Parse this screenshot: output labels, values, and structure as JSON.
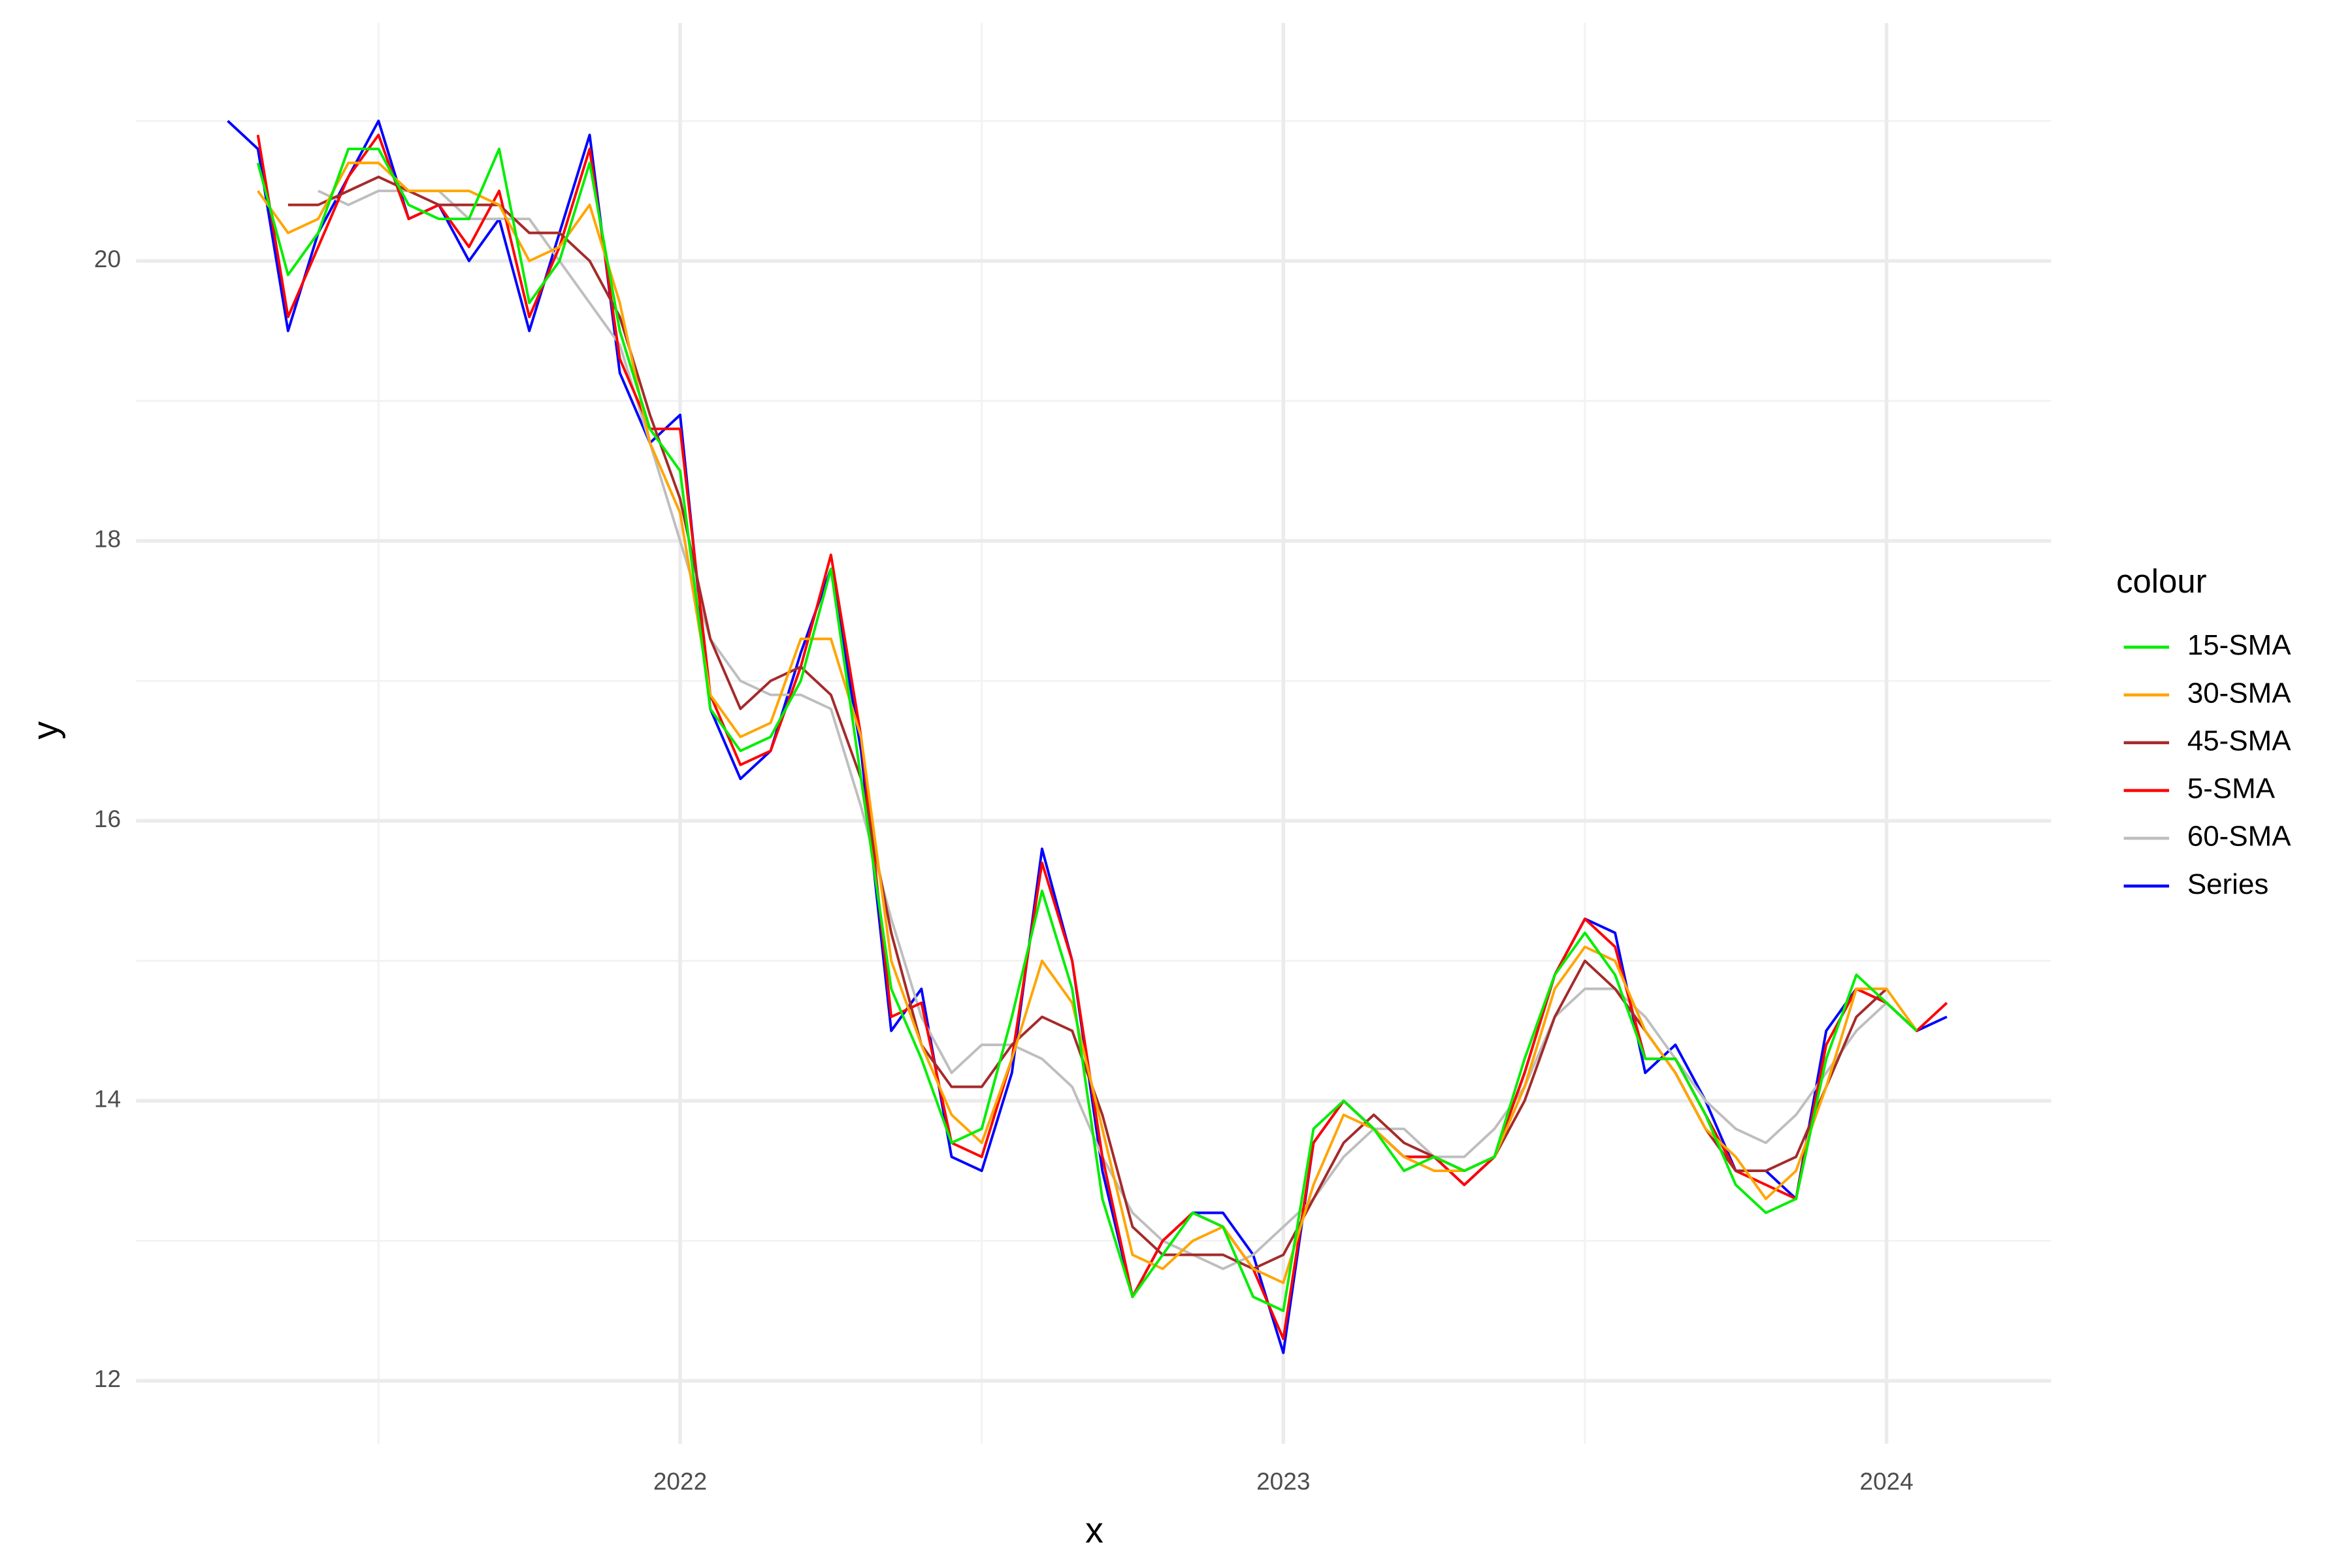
{
  "chart_data": {
    "type": "line",
    "x_label": "x",
    "y_label": "y",
    "legend_title": "colour",
    "legend_position": "right",
    "grid": true,
    "xlim": [
      2021.098,
      2024.273
    ],
    "ylim": [
      11.55,
      21.7
    ],
    "xticks": [
      2022,
      2023,
      2024
    ],
    "yticks": [
      12,
      14,
      16,
      18,
      20
    ],
    "x_minor_ticks": [
      2021.5,
      2022.5,
      2023.5
    ],
    "y_minor_ticks": [
      13,
      15,
      17,
      19,
      21
    ],
    "x": [
      2021.25,
      2021.3,
      2021.35,
      2021.4,
      2021.45,
      2021.5,
      2021.55,
      2021.6,
      2021.65,
      2021.7,
      2021.75,
      2021.8,
      2021.85,
      2021.9,
      2021.95,
      2022.0,
      2022.05,
      2022.1,
      2022.15,
      2022.2,
      2022.25,
      2022.3,
      2022.35,
      2022.4,
      2022.45,
      2022.5,
      2022.55,
      2022.6,
      2022.65,
      2022.7,
      2022.75,
      2022.8,
      2022.85,
      2022.9,
      2022.95,
      2023.0,
      2023.05,
      2023.1,
      2023.15,
      2023.2,
      2023.25,
      2023.3,
      2023.35,
      2023.4,
      2023.45,
      2023.5,
      2023.55,
      2023.6,
      2023.65,
      2023.7,
      2023.75,
      2023.8,
      2023.85,
      2023.9,
      2023.95,
      2024.0,
      2024.05,
      2024.1
    ],
    "series": [
      {
        "name": "15-SMA",
        "color": "#00ee00",
        "values": [
          null,
          20.7,
          19.9,
          20.2,
          20.8,
          20.8,
          20.4,
          20.3,
          20.3,
          20.8,
          19.7,
          20.0,
          20.7,
          19.5,
          18.8,
          18.5,
          16.8,
          16.5,
          16.6,
          17.0,
          17.8,
          16.3,
          14.8,
          14.3,
          13.7,
          13.8,
          14.6,
          15.5,
          14.8,
          13.3,
          12.6,
          12.9,
          13.2,
          13.1,
          12.6,
          12.5,
          13.8,
          14.0,
          13.8,
          13.5,
          13.6,
          13.5,
          13.6,
          14.3,
          14.9,
          15.2,
          14.9,
          14.3,
          14.3,
          13.9,
          13.4,
          13.2,
          13.3,
          14.3,
          14.9,
          14.7,
          14.5,
          null
        ]
      },
      {
        "name": "30-SMA",
        "color": "#ffa500",
        "values": [
          null,
          20.5,
          20.2,
          20.3,
          20.7,
          20.7,
          20.5,
          20.5,
          20.5,
          20.4,
          20.0,
          20.1,
          20.4,
          19.7,
          18.7,
          18.2,
          16.9,
          16.6,
          16.7,
          17.3,
          17.3,
          16.6,
          15.0,
          14.4,
          13.9,
          13.7,
          14.3,
          15.0,
          14.7,
          13.8,
          12.9,
          12.8,
          13.0,
          13.1,
          12.8,
          12.7,
          13.4,
          13.9,
          13.8,
          13.6,
          13.5,
          13.5,
          13.6,
          14.1,
          14.8,
          15.1,
          15.0,
          14.5,
          14.2,
          13.8,
          13.6,
          13.3,
          13.5,
          14.1,
          14.8,
          14.8,
          14.5,
          null
        ]
      },
      {
        "name": "45-SMA",
        "color": "#a52a2a",
        "values": [
          null,
          null,
          20.4,
          20.4,
          20.5,
          20.6,
          20.5,
          20.4,
          20.4,
          20.4,
          20.2,
          20.2,
          20.0,
          19.6,
          18.9,
          18.3,
          17.3,
          16.8,
          17.0,
          17.1,
          16.9,
          16.3,
          15.2,
          14.4,
          14.1,
          14.1,
          14.4,
          14.6,
          14.5,
          13.9,
          13.1,
          12.9,
          12.9,
          12.9,
          12.8,
          12.9,
          13.3,
          13.7,
          13.9,
          13.7,
          13.6,
          13.5,
          13.6,
          14.0,
          14.6,
          15.0,
          14.8,
          14.5,
          14.2,
          13.8,
          13.5,
          13.5,
          13.6,
          14.1,
          14.6,
          14.8,
          null,
          null
        ]
      },
      {
        "name": "5-SMA",
        "color": "#ff0000",
        "values": [
          null,
          20.9,
          19.6,
          20.1,
          20.6,
          20.9,
          20.3,
          20.4,
          20.1,
          20.5,
          19.6,
          20.1,
          20.8,
          19.3,
          18.8,
          18.8,
          16.9,
          16.4,
          16.5,
          17.1,
          17.9,
          16.6,
          14.6,
          14.7,
          13.7,
          13.6,
          14.3,
          15.7,
          15.0,
          13.6,
          12.6,
          13.0,
          13.2,
          13.1,
          12.8,
          12.3,
          13.7,
          14.0,
          13.8,
          13.6,
          13.6,
          13.4,
          13.6,
          14.2,
          14.9,
          15.3,
          15.1,
          14.3,
          14.3,
          13.9,
          13.5,
          13.4,
          13.3,
          14.4,
          14.8,
          14.7,
          14.5,
          14.7
        ]
      },
      {
        "name": "60-SMA",
        "color": "#bebebe",
        "values": [
          null,
          null,
          null,
          20.5,
          20.4,
          20.5,
          20.5,
          20.5,
          20.3,
          20.3,
          20.3,
          20.0,
          19.7,
          19.4,
          18.7,
          18.0,
          17.3,
          17.0,
          16.9,
          16.9,
          16.8,
          16.1,
          15.3,
          14.6,
          14.2,
          14.4,
          14.4,
          14.3,
          14.1,
          13.6,
          13.2,
          13.0,
          12.9,
          12.8,
          12.9,
          13.1,
          13.3,
          13.6,
          13.8,
          13.8,
          13.6,
          13.6,
          13.8,
          14.1,
          14.6,
          14.8,
          14.8,
          14.6,
          14.3,
          14.0,
          13.8,
          13.7,
          13.9,
          14.2,
          14.5,
          14.7,
          null,
          null
        ]
      },
      {
        "name": "Series",
        "color": "#0000ff",
        "values": [
          21.0,
          20.8,
          19.5,
          20.2,
          20.6,
          21.0,
          20.3,
          20.4,
          20.0,
          20.3,
          19.5,
          20.2,
          20.9,
          19.2,
          18.7,
          18.9,
          16.8,
          16.3,
          16.5,
          17.2,
          17.8,
          16.5,
          14.5,
          14.8,
          13.6,
          13.5,
          14.2,
          15.8,
          15.0,
          13.5,
          12.6,
          13.0,
          13.2,
          13.2,
          12.9,
          12.2,
          13.7,
          14.0,
          13.8,
          13.6,
          13.6,
          13.4,
          13.6,
          14.2,
          14.9,
          15.3,
          15.2,
          14.2,
          14.4,
          14.0,
          13.5,
          13.5,
          13.3,
          14.5,
          14.8,
          14.7,
          14.5,
          14.6
        ]
      }
    ]
  }
}
